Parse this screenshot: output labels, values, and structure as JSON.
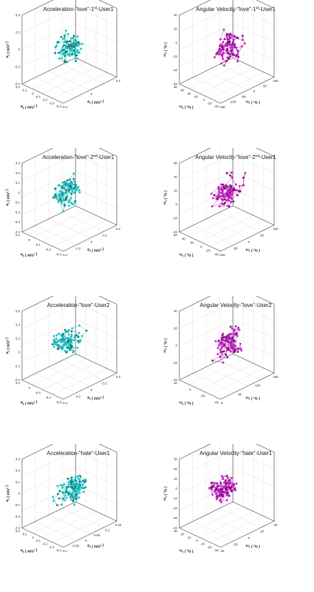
{
  "chart_data": [
    {
      "type": "scatter3d",
      "title": "Acceleration-\"love\"-1st-User1",
      "color": "#1fbfbf",
      "dark": "#127a7a",
      "xlabel": "a_x ( m/s^2 )",
      "ylabel": "a_y ( m/s^2 )",
      "zlabel": "a_z ( m/s^2 )",
      "xticks": [
        "-0.2",
        "0",
        "0.2"
      ],
      "yticks": [
        "-0.4",
        "-0.3",
        "-0.2",
        "-0.1",
        "0",
        "0.1",
        "0.2"
      ],
      "zticks": [
        "0.4",
        "0.2",
        "0",
        "-0.2",
        "-0.4"
      ],
      "xlim": [
        -0.3,
        0.2
      ],
      "ylim": [
        -0.4,
        0.2
      ],
      "zlim": [
        -0.4,
        0.4
      ],
      "seed": 11,
      "n": 110
    },
    {
      "type": "scatter3d",
      "title": "Angular Velocity-\"love\"-1st-User1",
      "color": "#c020c0",
      "dark": "#7a107a",
      "xlabel": "ω_x ( °/s )",
      "ylabel": "ω_y ( °/s )",
      "zlabel": "ω_z ( °/s )",
      "xticks": [
        "-150",
        "-100",
        "-50",
        "0",
        "50",
        "100"
      ],
      "yticks": [
        "-40",
        "-20",
        "0",
        "20",
        "40",
        "60",
        "80"
      ],
      "zticks": [
        "40",
        "20",
        "0",
        "-20",
        "-40",
        "-60"
      ],
      "xlim": [
        -150,
        100
      ],
      "ylim": [
        -40,
        80
      ],
      "zlim": [
        -60,
        40
      ],
      "seed": 23,
      "n": 110
    },
    {
      "type": "scatter3d",
      "title": "Acceleration-\"love\"-2nd-User1",
      "color": "#1fbfbf",
      "dark": "#127a7a",
      "xlabel": "a_x ( m/s^2 )",
      "ylabel": "a_y ( m/s^2 )",
      "zlabel": "a_z ( m/s^2 )",
      "xticks": [
        "-0.3",
        "-0.2",
        "0",
        "0.2",
        "0.4"
      ],
      "yticks": [
        "-0.3",
        "-0.2",
        "-0.1",
        "0",
        "0.1"
      ],
      "zticks": [
        "0.3",
        "0.2",
        "0.1",
        "0",
        "-0.1",
        "-0.2",
        "-0.3",
        "-0.4"
      ],
      "xlim": [
        -0.3,
        0.4
      ],
      "ylim": [
        -0.3,
        0.1
      ],
      "zlim": [
        -0.4,
        0.3
      ],
      "seed": 37,
      "n": 110
    },
    {
      "type": "scatter3d",
      "title": "Angular Velocity-\"love\"-2nd-User1",
      "color": "#c020c0",
      "dark": "#7a107a",
      "xlabel": "ω_x ( °/s )",
      "ylabel": "ω_y ( °/s )",
      "zlabel": "ω_z ( °/s )",
      "xticks": [
        "-100",
        "-50",
        "0",
        "50",
        "100"
      ],
      "yticks": [
        "-40",
        "-20",
        "0",
        "20",
        "40",
        "60"
      ],
      "zticks": [
        "60",
        "40",
        "20",
        "0",
        "-20",
        "-40"
      ],
      "xlim": [
        -100,
        100
      ],
      "ylim": [
        -40,
        60
      ],
      "zlim": [
        -40,
        60
      ],
      "seed": 41,
      "n": 110
    },
    {
      "type": "scatter3d",
      "title": "Acceleration-\"love\"-User2",
      "color": "#1fbfbf",
      "dark": "#127a7a",
      "xlabel": "a_x ( m/s^2 )",
      "ylabel": "a_y ( m/s^2 )",
      "zlabel": "a_z ( m/s^2 )",
      "xticks": [
        "-0.4",
        "-0.2",
        "0",
        "0.2",
        "0.4"
      ],
      "yticks": [
        "-0.6",
        "-0.4",
        "-0.2",
        "0",
        "0.2"
      ],
      "zticks": [
        "0.6",
        "0.4",
        "0.2",
        "0",
        "-0.2",
        "-0.4"
      ],
      "xlim": [
        -0.4,
        0.4
      ],
      "ylim": [
        -0.6,
        0.2
      ],
      "zlim": [
        -0.4,
        0.6
      ],
      "seed": 53,
      "n": 110
    },
    {
      "type": "scatter3d",
      "title": "Angular Velocity-\"love\"-User2",
      "color": "#c020c0",
      "dark": "#7a107a",
      "xlabel": "ω_x ( °/s )",
      "ylabel": "ω_y ( °/s )",
      "zlabel": "ω_z ( °/s )",
      "xticks": [
        "0",
        "50",
        "100",
        "150"
      ],
      "yticks": [
        "-40",
        "-20",
        "0",
        "20"
      ],
      "zticks": [
        "40",
        "20",
        "0",
        "-20",
        "-40"
      ],
      "xlim": [
        0,
        150
      ],
      "ylim": [
        -40,
        20
      ],
      "zlim": [
        -40,
        40
      ],
      "seed": 67,
      "n": 110
    },
    {
      "type": "scatter3d",
      "title": "Acceleration-\"hate\"-User1",
      "color": "#1fbfbf",
      "dark": "#127a7a",
      "xlabel": "a_x ( m/s^2 )",
      "ylabel": "a_y ( m/s^2 )",
      "zlabel": "a_z ( m/s^2 )",
      "xticks": [
        "-0.1",
        "-0.05",
        "0",
        "0.05",
        "0.1",
        "0.15"
      ],
      "yticks": [
        "-0.4",
        "-0.3",
        "-0.2",
        "-0.1",
        "0",
        "0.1",
        "0.2"
      ],
      "zticks": [
        "0.3",
        "0.2",
        "0.1",
        "0",
        "-0.1",
        "-0.2",
        "-0.3"
      ],
      "xlim": [
        -0.1,
        0.15
      ],
      "ylim": [
        -0.4,
        0.2
      ],
      "zlim": [
        -0.3,
        0.3
      ],
      "seed": 79,
      "n": 120
    },
    {
      "type": "scatter3d",
      "title": "Angular Velocity-\"hate\"-User1",
      "color": "#c020c0",
      "dark": "#7a107a",
      "xlabel": "ω_x ( °/s )",
      "ylabel": "ω_y ( °/s )",
      "zlabel": "ω_z ( °/s )",
      "xticks": [
        "-40",
        "-20",
        "0",
        "20",
        "40"
      ],
      "yticks": [
        "-30",
        "-20",
        "-10",
        "0",
        "10",
        "20",
        "30"
      ],
      "zticks": [
        "30",
        "20",
        "10",
        "0",
        "-10",
        "-20",
        "-30",
        "-40"
      ],
      "xlim": [
        -40,
        40
      ],
      "ylim": [
        -30,
        30
      ],
      "zlim": [
        -40,
        30
      ],
      "seed": 83,
      "n": 120
    }
  ]
}
